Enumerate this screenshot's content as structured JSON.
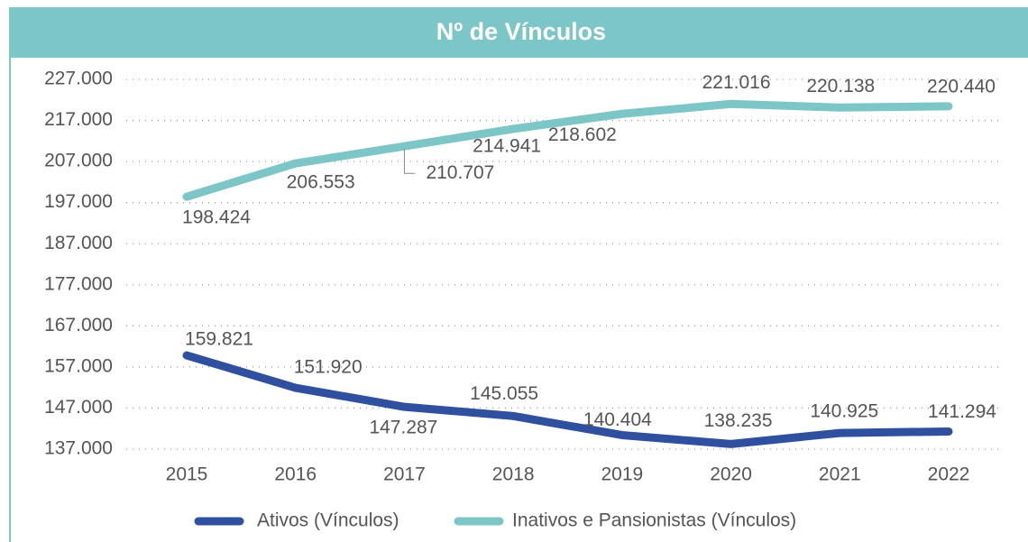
{
  "chart_data": {
    "type": "line",
    "title": "Nº de Vínculos",
    "categories": [
      "2015",
      "2016",
      "2017",
      "2018",
      "2019",
      "2020",
      "2021",
      "2022"
    ],
    "series": [
      {
        "name": "Ativos (Vínculos)",
        "color": "#2f4f9f",
        "values": [
          159821,
          151920,
          147287,
          145055,
          140404,
          138235,
          140925,
          141294
        ],
        "value_labels": [
          "159.821",
          "151.920",
          "147.287",
          "145.055",
          "140.404",
          "138.235",
          "140.925",
          "141.294"
        ]
      },
      {
        "name": "Inativos e Pansionistas (Vínculos)",
        "color": "#7cc6c8",
        "values": [
          198424,
          206553,
          210707,
          214941,
          218602,
          221016,
          220138,
          220440
        ],
        "value_labels": [
          "198.424",
          "206.553",
          "210.707",
          "214.941",
          "218.602",
          "221.016",
          "220.138",
          "220.440"
        ]
      }
    ],
    "ylim": [
      137000,
      227000
    ],
    "yticks": [
      {
        "value": 137000,
        "label": "137.000"
      },
      {
        "value": 147000,
        "label": "147.000"
      },
      {
        "value": 157000,
        "label": "157.000"
      },
      {
        "value": 167000,
        "label": "167.000"
      },
      {
        "value": 177000,
        "label": "177.000"
      },
      {
        "value": 187000,
        "label": "187.000"
      },
      {
        "value": 197000,
        "label": "197.000"
      },
      {
        "value": 207000,
        "label": "207.000"
      },
      {
        "value": 217000,
        "label": "217.000"
      },
      {
        "value": 227000,
        "label": "227.000"
      }
    ],
    "grid": true
  }
}
